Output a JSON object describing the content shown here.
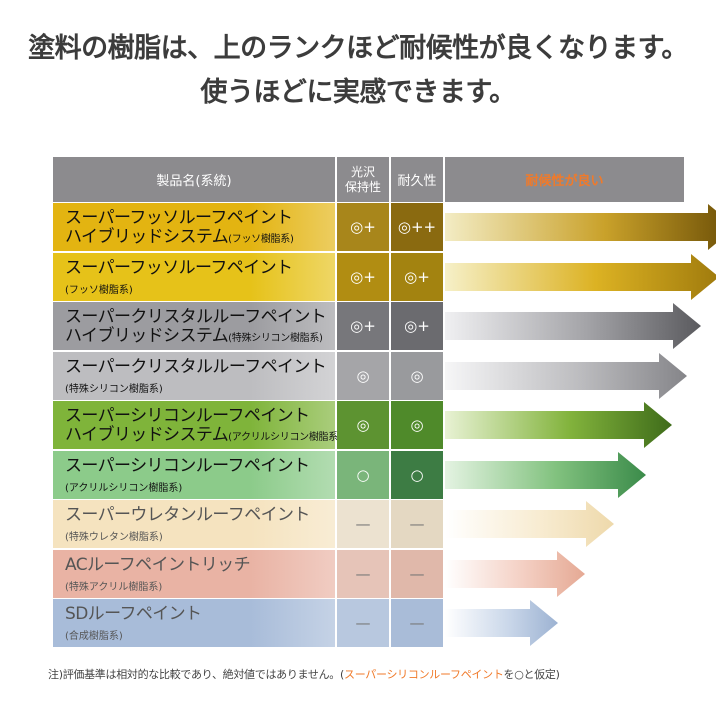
{
  "headline": {
    "line1": "塗料の樹脂は、上のランクほど耐候性が良くなります。",
    "line2": "使うほどに実感できます。"
  },
  "table_header": {
    "product_name": "製品名(系統)",
    "gloss_line1": "光沢",
    "gloss_line2": "保持性",
    "durability": "耐久性",
    "better_weather": "耐候性が良い"
  },
  "rows": [
    {
      "name_line1": "スーパーフッソルーフペイント",
      "name_line2": "ハイブリッドシステム",
      "name_sub": "(フッソ樹脂系)",
      "gloss": "◎+",
      "durability": "◎++",
      "text_color": "#111111",
      "fill": "#e3b411",
      "arrow_len": 1.0
    },
    {
      "name_line1": "スーパーフッソルーフペイント",
      "name_line2": "",
      "name_sub": "(フッソ樹脂系)",
      "gloss": "◎+",
      "durability": "◎+",
      "text_color": "#111111",
      "fill": "#e6c219",
      "arrow_len": 0.94
    },
    {
      "name_line1": "スーパークリスタルルーフペイント",
      "name_line2": "ハイブリッドシステム",
      "name_sub": "(特殊シリコン樹脂系)",
      "gloss": "◎+",
      "durability": "◎+",
      "text_color": "#111111",
      "fill": "#9c9ca0",
      "arrow_len": 0.88
    },
    {
      "name_line1": "スーパークリスタルルーフペイント",
      "name_line2": "",
      "name_sub": "(特殊シリコン樹脂系)",
      "gloss": "◎",
      "durability": "◎",
      "text_color": "#111111",
      "fill": "#bdbdc0",
      "arrow_len": 0.83
    },
    {
      "name_line1": "スーパーシリコンルーフペイント",
      "name_line2": "ハイブリッドシステム",
      "name_sub": "(アクリルシリコン樹脂系)",
      "gloss": "◎",
      "durability": "◎",
      "text_color": "#111111",
      "fill": "#7fb43a",
      "arrow_len": 0.78
    },
    {
      "name_line1": "スーパーシリコンルーフペイント",
      "name_line2": "",
      "name_sub": "(アクリルシリコン樹脂系)",
      "gloss": "○",
      "durability": "○",
      "text_color": "#111111",
      "fill": "#8ccb8a",
      "arrow_len": 0.69
    },
    {
      "name_line1": "スーパーウレタンルーフペイント",
      "name_line2": "",
      "name_sub": "(特殊ウレタン樹脂系)",
      "gloss": "—",
      "durability": "—",
      "text_color": "#555555",
      "fill": "#f5e3bf",
      "arrow_len": 0.58
    },
    {
      "name_line1": "ACルーフペイントリッチ",
      "name_line2": "",
      "name_sub": "(特殊アクリル樹脂系)",
      "gloss": "—",
      "durability": "—",
      "text_color": "#555555",
      "fill": "#e9b3a4",
      "arrow_len": 0.48
    },
    {
      "name_line1": "SDルーフペイント",
      "name_line2": "",
      "name_sub": "(合成樹脂系)",
      "gloss": "—",
      "durability": "—",
      "text_color": "#555555",
      "fill": "#a8bcd9",
      "arrow_len": 0.39
    }
  ],
  "footnote": {
    "prefix": "注)評価基準は相対的な比較であり、絶対値ではありません。(",
    "highlight": "スーパーシリコンルーフペイント",
    "suffix": "を○と仮定)"
  },
  "colors": {
    "header_gray": "#8c8b8e",
    "accent_orange": "#f07a2a"
  }
}
